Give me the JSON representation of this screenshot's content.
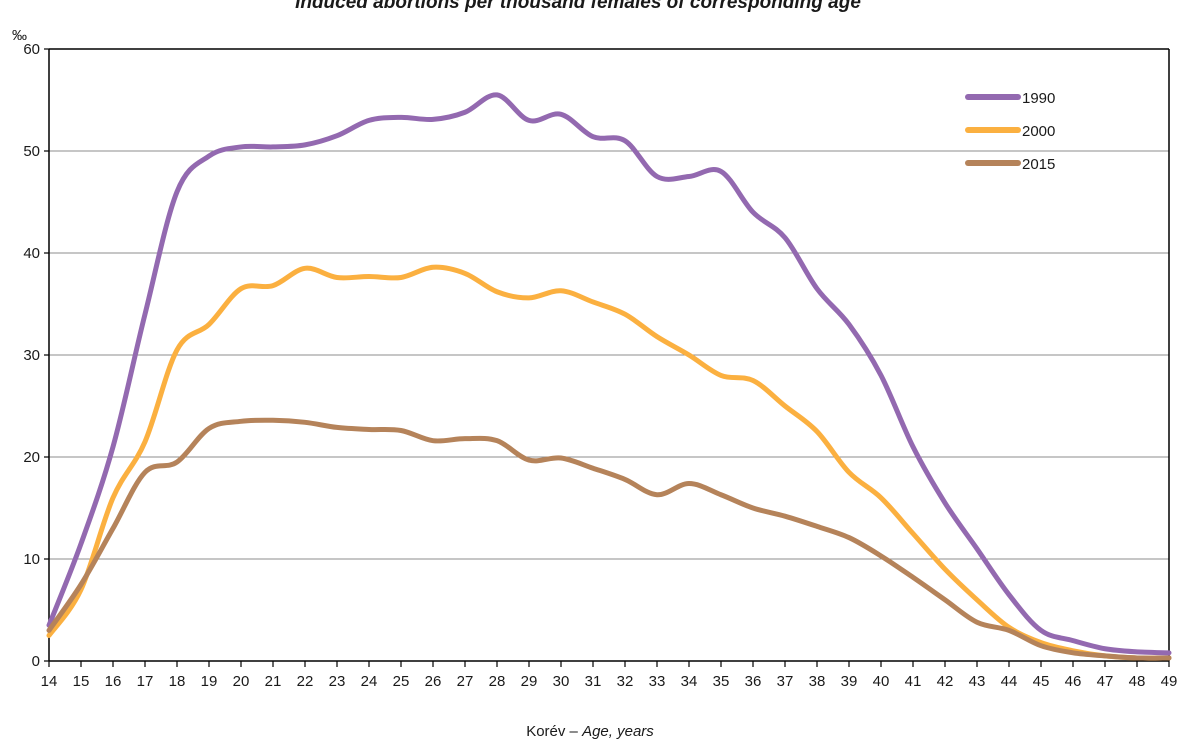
{
  "chart_data": {
    "type": "line",
    "title": "Induced abortions per thousand females of corresponding age",
    "ylabel": "‰",
    "xlabel_main": "Korév – ",
    "xlabel_italic": "Age, years",
    "x": [
      14,
      15,
      16,
      17,
      18,
      19,
      20,
      21,
      22,
      23,
      24,
      25,
      26,
      27,
      28,
      29,
      30,
      31,
      32,
      33,
      34,
      35,
      36,
      37,
      38,
      39,
      40,
      41,
      42,
      43,
      44,
      45,
      46,
      47,
      48,
      49
    ],
    "xlim": [
      14,
      49
    ],
    "ylim": [
      0,
      60
    ],
    "yticks": [
      0,
      10,
      20,
      30,
      40,
      50,
      60
    ],
    "grid": true,
    "legend_position": "top-right",
    "series": [
      {
        "name": "1990",
        "color": "#9369b0",
        "values": [
          3.5,
          11.5,
          21,
          34,
          46,
          49.5,
          50.4,
          50.4,
          50.6,
          51.5,
          53,
          53.3,
          53.1,
          53.8,
          55.5,
          53,
          53.6,
          51.4,
          51,
          47.5,
          47.5,
          48,
          44,
          41.5,
          36.5,
          33,
          28,
          21,
          15.5,
          11,
          6.5,
          3,
          2,
          1.2,
          0.9,
          0.8
        ]
      },
      {
        "name": "2000",
        "color": "#fbb040",
        "values": [
          2.5,
          7,
          16,
          21.5,
          30.5,
          33,
          36.5,
          36.8,
          38.5,
          37.6,
          37.7,
          37.6,
          38.6,
          38,
          36.2,
          35.6,
          36.3,
          35.2,
          34,
          31.8,
          30,
          28,
          27.5,
          25,
          22.5,
          18.5,
          16,
          12.5,
          9,
          6,
          3.3,
          1.8,
          1,
          0.5,
          0.3,
          0.3
        ]
      },
      {
        "name": "2015",
        "color": "#b5835a",
        "values": [
          3,
          7.5,
          13,
          18.5,
          19.5,
          22.8,
          23.5,
          23.6,
          23.4,
          22.9,
          22.7,
          22.6,
          21.6,
          21.8,
          21.6,
          19.7,
          19.9,
          18.9,
          17.8,
          16.3,
          17.4,
          16.3,
          15,
          14.2,
          13.2,
          12.1,
          10.3,
          8.2,
          6,
          3.8,
          3,
          1.5,
          0.8,
          0.5,
          0.3,
          0.3
        ]
      }
    ]
  }
}
